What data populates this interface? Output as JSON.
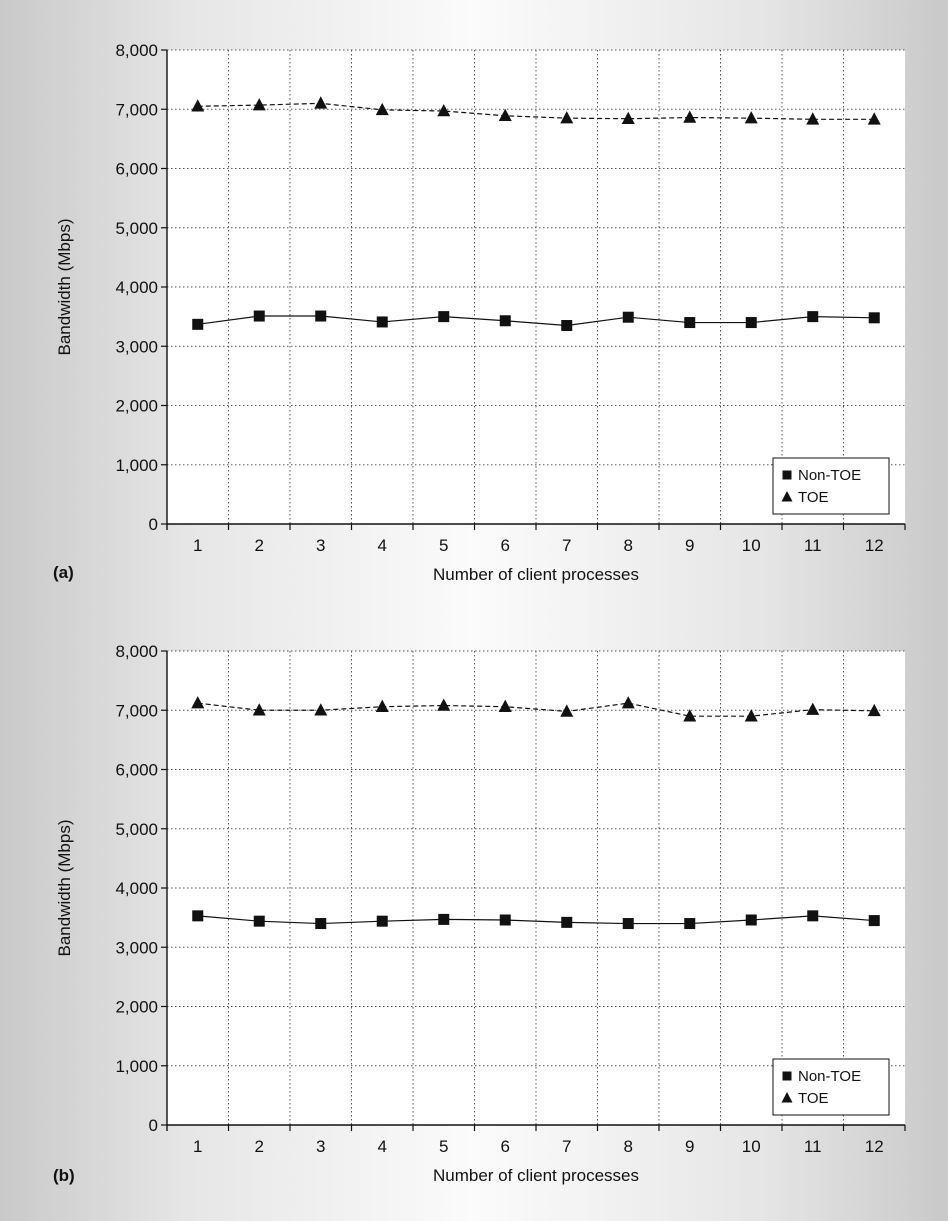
{
  "chart_data": [
    {
      "type": "line",
      "panel_label": "(a)",
      "title": "",
      "xlabel": "Number of client processes",
      "ylabel": "Bandwidth (Mbps)",
      "categories": [
        "1",
        "2",
        "3",
        "4",
        "5",
        "6",
        "7",
        "8",
        "9",
        "10",
        "11",
        "12"
      ],
      "yticks": [
        "0",
        "1,000",
        "2,000",
        "3,000",
        "4,000",
        "5,000",
        "6,000",
        "7,000",
        "8,000"
      ],
      "ylim": [
        0,
        8000
      ],
      "grid": true,
      "legend_position": "bottom-right",
      "series": [
        {
          "name": "Non-TOE",
          "marker": "square",
          "line": "solid",
          "values": [
            3370,
            3510,
            3510,
            3410,
            3500,
            3430,
            3350,
            3490,
            3400,
            3400,
            3500,
            3480
          ]
        },
        {
          "name": "TOE",
          "marker": "triangle",
          "line": "dashed",
          "values": [
            7050,
            7070,
            7100,
            6990,
            6970,
            6890,
            6850,
            6840,
            6860,
            6850,
            6830,
            6830
          ]
        }
      ]
    },
    {
      "type": "line",
      "panel_label": "(b)",
      "title": "",
      "xlabel": "Number of client processes",
      "ylabel": "Bandwidth (Mbps)",
      "categories": [
        "1",
        "2",
        "3",
        "4",
        "5",
        "6",
        "7",
        "8",
        "9",
        "10",
        "11",
        "12"
      ],
      "yticks": [
        "0",
        "1,000",
        "2,000",
        "3,000",
        "4,000",
        "5,000",
        "6,000",
        "7,000",
        "8,000"
      ],
      "ylim": [
        0,
        8000
      ],
      "grid": true,
      "legend_position": "bottom-right",
      "series": [
        {
          "name": "Non-TOE",
          "marker": "square",
          "line": "solid",
          "values": [
            3530,
            3440,
            3400,
            3440,
            3470,
            3460,
            3420,
            3400,
            3400,
            3460,
            3530,
            3450
          ]
        },
        {
          "name": "TOE",
          "marker": "triangle",
          "line": "dashed",
          "values": [
            7120,
            7000,
            7000,
            7060,
            7080,
            7060,
            6980,
            7120,
            6900,
            6900,
            7010,
            6990
          ]
        }
      ]
    }
  ]
}
